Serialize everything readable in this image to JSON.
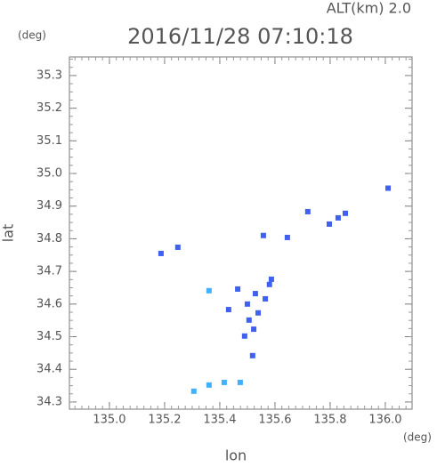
{
  "chart_data": {
    "type": "scatter",
    "title": "2016/11/28 07:10:18",
    "subtitle": "ALT(km) 2.0",
    "x_label": "lon",
    "y_label": "lat",
    "x_unit": "(deg)",
    "y_unit": "(deg)",
    "xlim": [
      134.855,
      136.097
    ],
    "ylim": [
      34.278,
      35.357
    ],
    "xticks": [
      {
        "value": 135,
        "label": "135.0"
      },
      135.2,
      135.4,
      135.6,
      135.8,
      {
        "value": 136,
        "label": "136.0"
      }
    ],
    "yticks": [
      34.3,
      34.4,
      34.5,
      34.6,
      34.7,
      34.8,
      34.9,
      {
        "value": 35,
        "label": "35.0"
      },
      35.1,
      35.2,
      35.3
    ],
    "series": [
      {
        "color": "#4060f0",
        "x": [
          136.01,
          135.797,
          135.829,
          135.855,
          135.719,
          135.645,
          135.558,
          135.187,
          135.248,
          135.587,
          135.465,
          135.529,
          135.565,
          135.506,
          135.523,
          135.49,
          135.539,
          135.432,
          135.519,
          135.58,
          135.5
        ],
        "values": [
          34.955,
          34.845,
          34.864,
          34.878,
          34.883,
          34.804,
          34.81,
          34.755,
          34.774,
          34.676,
          34.646,
          34.632,
          34.616,
          34.551,
          34.523,
          34.502,
          34.573,
          34.583,
          34.442,
          34.66,
          34.6
        ]
      },
      {
        "color": "#40b0ff",
        "x": [
          135.361,
          135.306,
          135.361,
          135.416,
          135.474
        ],
        "values": [
          34.641,
          34.333,
          34.352,
          34.36,
          34.36
        ]
      }
    ]
  }
}
